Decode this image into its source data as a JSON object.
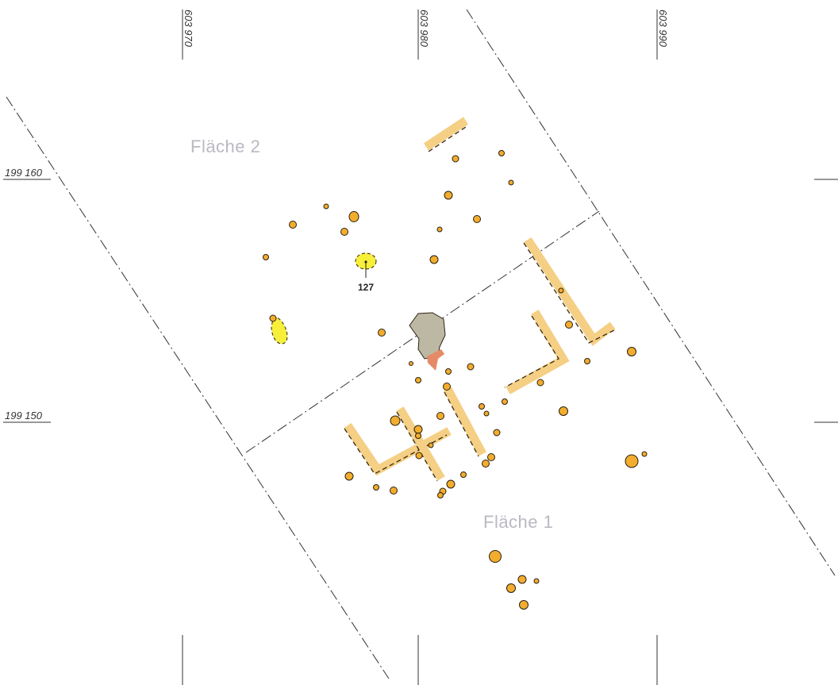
{
  "coordinates": {
    "x_labels": [
      "603 970",
      "603 980",
      "603 990"
    ],
    "y_labels": [
      "199 160",
      "199 150"
    ]
  },
  "areas": {
    "flaeche_1": "Fläche 1",
    "flaeche_2": "Fläche 2"
  },
  "features": {
    "pit_127": "127"
  },
  "colors": {
    "posthole_fill": "#f2ac2e",
    "trench_fill": "#f4cf84",
    "yellow_feature": "#f7ef3a",
    "grey_feature": "#bdb8a3",
    "red_feature": "#e58a66",
    "boundary_line": "#333333",
    "area_label": "#b9b9c2"
  }
}
